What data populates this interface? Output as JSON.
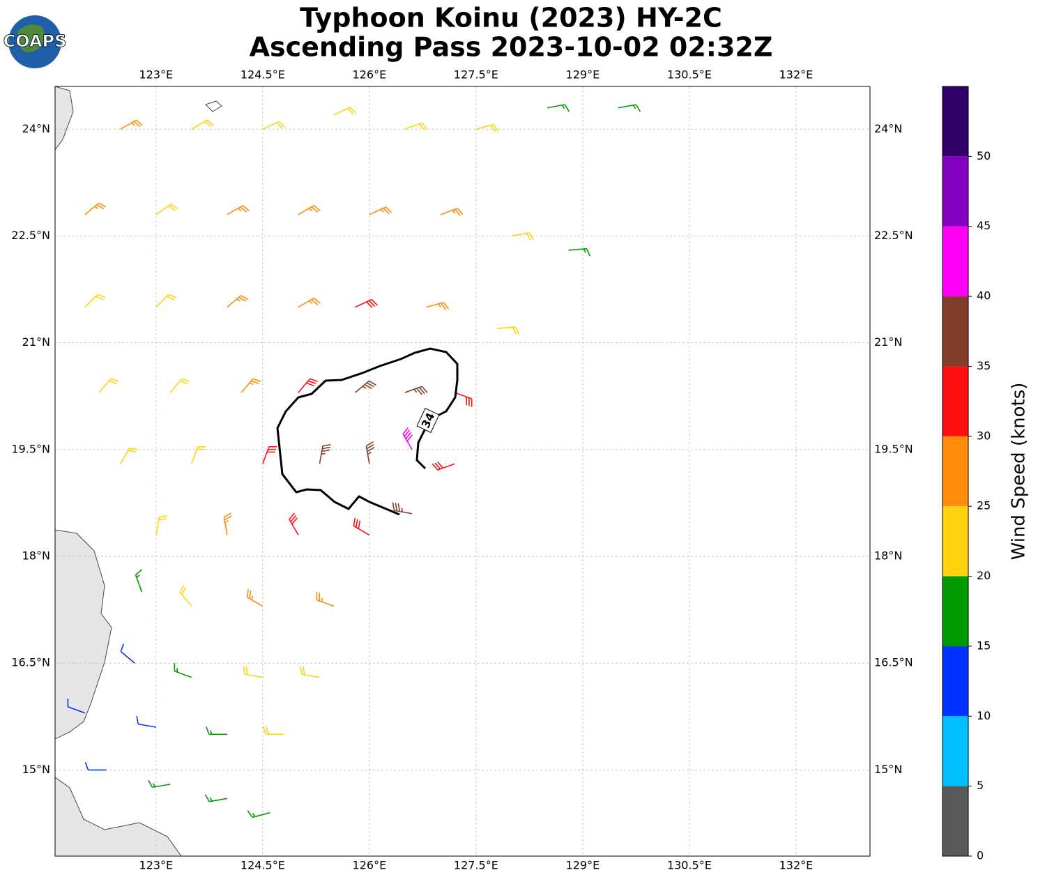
{
  "chart_data": {
    "type": "wind_barbs",
    "title": "Typhoon Koinu (2023) HY-2C",
    "subtitle": "Ascending Pass 2023-10-02 02:32Z",
    "logo": "COAPS",
    "xlim": [
      121.58,
      133.04
    ],
    "ylim": [
      13.79,
      24.6
    ],
    "xticks": [
      {
        "value": 123,
        "label": "123°E"
      },
      {
        "value": 124.5,
        "label": "124.5°E"
      },
      {
        "value": 126,
        "label": "126°E"
      },
      {
        "value": 127.5,
        "label": "127.5°E"
      },
      {
        "value": 129,
        "label": "129°E"
      },
      {
        "value": 130.5,
        "label": "130.5°E"
      },
      {
        "value": 132,
        "label": "132°E"
      }
    ],
    "yticks": [
      {
        "value": 15,
        "label": "15°N"
      },
      {
        "value": 16.5,
        "label": "16.5°N"
      },
      {
        "value": 18,
        "label": "18°N"
      },
      {
        "value": 19.5,
        "label": "19.5°N"
      },
      {
        "value": 21,
        "label": "21°N"
      },
      {
        "value": 22.5,
        "label": "22.5°N"
      },
      {
        "value": 24,
        "label": "24°N"
      }
    ],
    "grid": true,
    "contour_level": 34,
    "colorbar": {
      "label": "Wind Speed (knots)",
      "bounds": [
        0,
        5,
        10,
        15,
        20,
        25,
        30,
        35,
        40,
        45,
        50,
        55
      ],
      "colors": [
        "#595959",
        "#00bfff",
        "#0033ff",
        "#009900",
        "#ffd40f",
        "#ff8c0a",
        "#ff1010",
        "#813e2a",
        "#ff00f5",
        "#8300bf",
        "#2f0066"
      ],
      "ticks": [
        0,
        5,
        10,
        15,
        20,
        25,
        30,
        35,
        40,
        45,
        50
      ]
    },
    "wind_barbs": {
      "lon": [
        122.5,
        123.5,
        124.5,
        125.5,
        126.5,
        127.5,
        128.5,
        129.5,
        122.0,
        123.0,
        124.0,
        125.0,
        126.0,
        127.0,
        128.0,
        128.8,
        122.0,
        123.0,
        124.0,
        125.0,
        125.8,
        126.8,
        127.8,
        122.2,
        123.2,
        124.2,
        125.0,
        125.8,
        126.5,
        127.2,
        122.5,
        123.5,
        124.5,
        125.3,
        126.0,
        126.6,
        127.2,
        123.0,
        124.0,
        125.0,
        126.0,
        126.6,
        122.8,
        123.5,
        124.5,
        125.5,
        122.7,
        123.5,
        124.5,
        125.3,
        122.0,
        123.0,
        124.0,
        124.8,
        122.3,
        123.2,
        124.0,
        124.6
      ],
      "lat": [
        24.0,
        24.0,
        24.0,
        24.2,
        24.0,
        24.0,
        24.3,
        24.3,
        22.8,
        22.8,
        22.8,
        22.8,
        22.8,
        22.8,
        22.5,
        22.3,
        21.5,
        21.5,
        21.5,
        21.5,
        21.5,
        21.5,
        21.2,
        20.3,
        20.3,
        20.3,
        20.3,
        20.3,
        20.3,
        20.3,
        19.3,
        19.3,
        19.3,
        19.3,
        19.3,
        19.5,
        19.3,
        18.3,
        18.3,
        18.3,
        18.3,
        18.6,
        17.5,
        17.3,
        17.3,
        17.3,
        16.5,
        16.3,
        16.3,
        16.3,
        15.8,
        15.6,
        15.5,
        15.5,
        15.0,
        14.8,
        14.6,
        14.4
      ],
      "speed": [
        27,
        24,
        24,
        24,
        23,
        22,
        18,
        17,
        27,
        24,
        26,
        27,
        27,
        26,
        21,
        17,
        23,
        22,
        25,
        28,
        32,
        29,
        24,
        22,
        23,
        28,
        34,
        37,
        38,
        32,
        22,
        24,
        32,
        37,
        38,
        42,
        33,
        22,
        26,
        31,
        33,
        35,
        17,
        23,
        27,
        28,
        13,
        17,
        23,
        24,
        12,
        14,
        19,
        22,
        12,
        16,
        18,
        17
      ],
      "direction": [
        60,
        60,
        65,
        65,
        70,
        75,
        80,
        80,
        50,
        55,
        60,
        60,
        65,
        70,
        80,
        85,
        45,
        45,
        50,
        60,
        65,
        75,
        85,
        40,
        40,
        40,
        40,
        50,
        70,
        110,
        30,
        20,
        20,
        10,
        350,
        330,
        250,
        10,
        350,
        330,
        300,
        280,
        340,
        320,
        300,
        290,
        310,
        290,
        280,
        280,
        290,
        280,
        270,
        270,
        270,
        260,
        260,
        255
      ]
    }
  }
}
